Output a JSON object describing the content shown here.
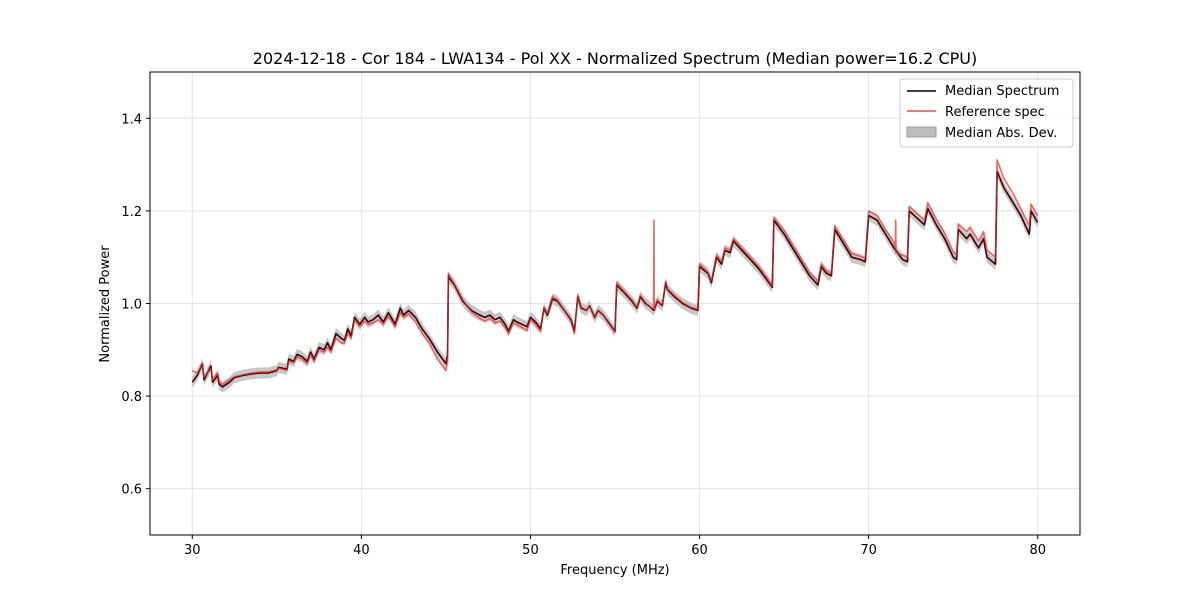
{
  "chart_data": {
    "type": "line",
    "title": "2024-12-18 - Cor 184 - LWA134 - Pol XX - Normalized Spectrum (Median power=16.2 CPU)",
    "xlabel": "Frequency (MHz)",
    "ylabel": "Normalized Power",
    "xlim": [
      27.5,
      82.5
    ],
    "ylim": [
      0.5,
      1.5
    ],
    "xticks": [
      30,
      40,
      50,
      60,
      70,
      80
    ],
    "yticks": [
      0.6,
      0.8,
      1.0,
      1.2,
      1.4
    ],
    "grid": true,
    "legend_position": "upper right",
    "legend": [
      "Median Spectrum",
      "Reference spec",
      "Median Abs. Dev."
    ],
    "colors": {
      "median": "#000000",
      "reference": "#e84a4a",
      "overlap": "#8b0000",
      "mad_fill": "#bdbdbd",
      "grid": "#e4e4e4"
    },
    "mad_width": 0.012,
    "series": [
      {
        "name": "Median Spectrum",
        "x": [
          30.0,
          30.3,
          30.6,
          30.7,
          31.1,
          31.2,
          31.5,
          31.6,
          31.8,
          32.2,
          32.5,
          33.0,
          33.5,
          34.0,
          34.5,
          35.0,
          35.1,
          35.6,
          35.7,
          36.0,
          36.2,
          36.5,
          36.8,
          37.0,
          37.2,
          37.5,
          37.8,
          38.0,
          38.2,
          38.5,
          38.8,
          39.0,
          39.2,
          39.4,
          39.6,
          39.9,
          40.2,
          40.4,
          40.7,
          41.0,
          41.3,
          41.6,
          42.0,
          42.3,
          42.5,
          42.8,
          43.2,
          43.6,
          44.0,
          44.5,
          45.0,
          45.1,
          45.15,
          45.2,
          45.5,
          46.0,
          46.5,
          47.0,
          47.3,
          47.6,
          47.9,
          48.2,
          48.5,
          48.7,
          49.0,
          49.2,
          49.5,
          49.8,
          50.0,
          50.3,
          50.6,
          50.8,
          51.0,
          51.3,
          51.6,
          52.0,
          52.4,
          52.6,
          52.8,
          53.0,
          53.3,
          53.5,
          53.8,
          54.0,
          54.3,
          54.6,
          55.0,
          55.1,
          55.5,
          56.0,
          56.3,
          56.5,
          56.8,
          57.0,
          57.3,
          57.5,
          57.8,
          58.0,
          58.1,
          58.5,
          59.0,
          59.5,
          59.9,
          60.0,
          60.5,
          60.7,
          61.0,
          61.3,
          61.5,
          61.8,
          62.0,
          62.5,
          63.0,
          63.5,
          64.0,
          64.3,
          64.4,
          65.0,
          65.5,
          66.0,
          66.5,
          67.0,
          67.2,
          67.5,
          67.8,
          68.0,
          68.5,
          69.0,
          69.5,
          69.8,
          70.0,
          70.5,
          71.0,
          71.5,
          72.0,
          72.3,
          72.4,
          73.0,
          73.3,
          73.5,
          74.0,
          74.5,
          75.0,
          75.2,
          75.3,
          75.8,
          76.0,
          76.5,
          76.8,
          77.0,
          77.5,
          77.6,
          78.0,
          78.5,
          79.0,
          79.5,
          79.6,
          80.0
        ],
        "y": [
          0.83,
          0.845,
          0.87,
          0.835,
          0.865,
          0.83,
          0.845,
          0.825,
          0.82,
          0.83,
          0.84,
          0.845,
          0.848,
          0.85,
          0.85,
          0.855,
          0.862,
          0.858,
          0.88,
          0.875,
          0.89,
          0.885,
          0.875,
          0.895,
          0.88,
          0.905,
          0.9,
          0.915,
          0.9,
          0.935,
          0.925,
          0.92,
          0.945,
          0.93,
          0.97,
          0.955,
          0.97,
          0.96,
          0.965,
          0.975,
          0.96,
          0.98,
          0.955,
          0.99,
          0.975,
          0.985,
          0.97,
          0.945,
          0.925,
          0.895,
          0.87,
          0.89,
          1.06,
          1.055,
          1.04,
          1.005,
          0.985,
          0.975,
          0.97,
          0.975,
          0.965,
          0.97,
          0.955,
          0.94,
          0.965,
          0.96,
          0.955,
          0.95,
          0.97,
          0.96,
          0.945,
          0.99,
          0.975,
          1.01,
          1.005,
          0.985,
          0.965,
          0.94,
          1.015,
          0.99,
          0.985,
          0.995,
          0.97,
          0.985,
          0.975,
          0.96,
          0.94,
          1.04,
          1.025,
          1.005,
          0.99,
          1.015,
          1.0,
          0.995,
          0.985,
          1.005,
          0.995,
          1.045,
          1.03,
          1.015,
          1.0,
          0.99,
          0.985,
          1.08,
          1.065,
          1.045,
          1.1,
          1.085,
          1.115,
          1.11,
          1.135,
          1.115,
          1.095,
          1.075,
          1.05,
          1.035,
          1.18,
          1.15,
          1.12,
          1.09,
          1.06,
          1.04,
          1.08,
          1.065,
          1.06,
          1.16,
          1.13,
          1.1,
          1.095,
          1.09,
          1.19,
          1.18,
          1.15,
          1.12,
          1.095,
          1.09,
          1.2,
          1.18,
          1.17,
          1.205,
          1.17,
          1.14,
          1.1,
          1.095,
          1.16,
          1.14,
          1.15,
          1.12,
          1.14,
          1.1,
          1.085,
          1.285,
          1.25,
          1.22,
          1.19,
          1.15,
          1.2,
          1.175
        ]
      },
      {
        "name": "Reference spec",
        "x": [
          30.0,
          30.3,
          30.6,
          30.7,
          31.1,
          31.2,
          31.5,
          31.6,
          31.8,
          32.2,
          32.5,
          33.0,
          33.5,
          34.0,
          34.5,
          35.0,
          35.1,
          35.6,
          35.7,
          36.0,
          36.2,
          36.5,
          36.8,
          37.0,
          37.2,
          37.5,
          37.8,
          38.0,
          38.2,
          38.5,
          38.8,
          39.0,
          39.2,
          39.4,
          39.6,
          39.9,
          40.2,
          40.4,
          40.7,
          41.0,
          41.3,
          41.6,
          42.0,
          42.3,
          42.5,
          42.8,
          43.2,
          43.6,
          44.0,
          44.5,
          45.0,
          45.1,
          45.15,
          45.2,
          45.5,
          46.0,
          46.5,
          47.0,
          47.3,
          47.6,
          47.9,
          48.2,
          48.5,
          48.7,
          49.0,
          49.2,
          49.5,
          49.8,
          50.0,
          50.3,
          50.6,
          50.8,
          51.0,
          51.3,
          51.6,
          52.0,
          52.4,
          52.6,
          52.8,
          53.0,
          53.3,
          53.5,
          53.8,
          54.0,
          54.3,
          54.6,
          55.0,
          55.1,
          55.5,
          56.0,
          56.3,
          56.5,
          56.8,
          57.0,
          57.28,
          57.3,
          57.32,
          57.5,
          57.8,
          58.0,
          58.1,
          58.5,
          59.0,
          59.5,
          59.9,
          60.0,
          60.5,
          60.7,
          61.0,
          61.3,
          61.5,
          61.8,
          62.0,
          62.5,
          63.0,
          63.5,
          64.0,
          64.3,
          64.4,
          65.0,
          65.5,
          66.0,
          66.5,
          67.0,
          67.2,
          67.5,
          67.8,
          68.0,
          68.5,
          69.0,
          69.5,
          69.8,
          70.0,
          70.5,
          71.0,
          71.5,
          71.58,
          71.6,
          71.62,
          72.0,
          72.3,
          72.4,
          73.0,
          73.3,
          73.5,
          74.0,
          74.5,
          75.0,
          75.2,
          75.3,
          75.8,
          76.0,
          76.5,
          76.8,
          77.0,
          77.5,
          77.6,
          78.0,
          78.5,
          79.0,
          79.5,
          79.6,
          80.0
        ],
        "y": [
          0.855,
          0.85,
          0.87,
          0.84,
          0.86,
          0.835,
          0.85,
          0.83,
          0.825,
          0.835,
          0.842,
          0.846,
          0.85,
          0.852,
          0.852,
          0.857,
          0.86,
          0.856,
          0.875,
          0.872,
          0.885,
          0.88,
          0.87,
          0.89,
          0.875,
          0.9,
          0.895,
          0.905,
          0.895,
          0.925,
          0.915,
          0.915,
          0.935,
          0.925,
          0.965,
          0.95,
          0.962,
          0.955,
          0.958,
          0.965,
          0.955,
          0.972,
          0.95,
          0.98,
          0.97,
          0.978,
          0.96,
          0.935,
          0.915,
          0.88,
          0.855,
          0.875,
          1.065,
          1.06,
          1.042,
          1.008,
          0.982,
          0.968,
          0.962,
          0.968,
          0.958,
          0.962,
          0.948,
          0.935,
          0.958,
          0.955,
          0.948,
          0.942,
          0.965,
          0.955,
          0.94,
          0.992,
          0.978,
          1.015,
          1.008,
          0.985,
          0.962,
          0.935,
          1.018,
          0.992,
          0.985,
          0.995,
          0.968,
          0.985,
          0.975,
          0.958,
          0.938,
          1.045,
          1.028,
          1.008,
          0.992,
          1.018,
          1.002,
          0.995,
          0.988,
          1.18,
          0.988,
          1.008,
          0.995,
          1.048,
          1.032,
          1.018,
          1.002,
          0.992,
          0.988,
          1.085,
          1.068,
          1.048,
          1.105,
          1.09,
          1.12,
          1.115,
          1.14,
          1.12,
          1.1,
          1.08,
          1.055,
          1.038,
          1.185,
          1.158,
          1.128,
          1.098,
          1.068,
          1.048,
          1.085,
          1.07,
          1.065,
          1.168,
          1.138,
          1.108,
          1.102,
          1.098,
          1.2,
          1.19,
          1.16,
          1.132,
          1.12,
          1.18,
          1.11,
          1.105,
          1.1,
          1.21,
          1.19,
          1.18,
          1.218,
          1.182,
          1.152,
          1.112,
          1.105,
          1.172,
          1.155,
          1.165,
          1.135,
          1.155,
          1.115,
          1.1,
          1.31,
          1.27,
          1.24,
          1.205,
          1.168,
          1.215,
          1.19
        ]
      }
    ]
  }
}
